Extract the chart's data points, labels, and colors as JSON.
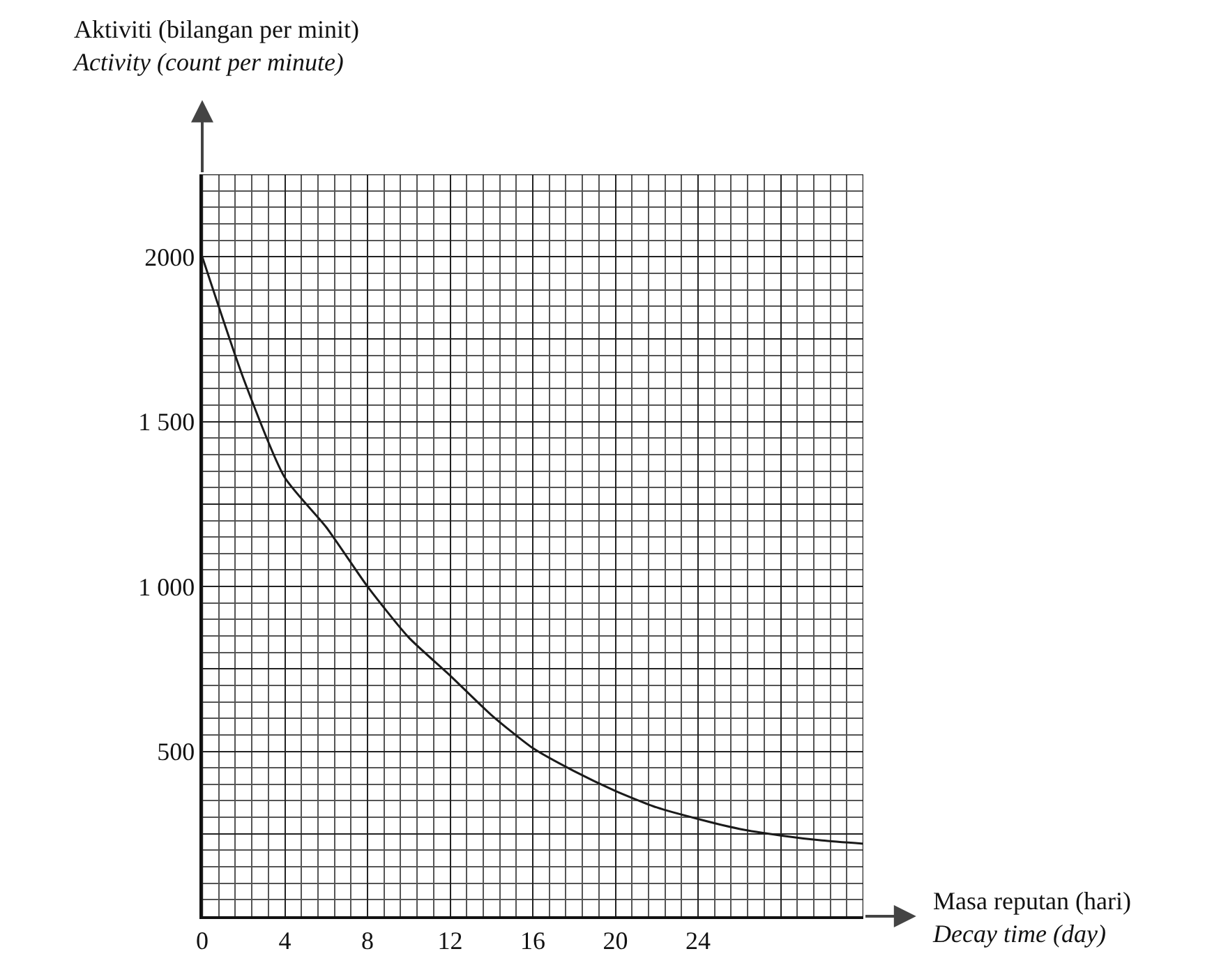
{
  "chart_data": {
    "type": "line",
    "xlabel": "Masa reputan (hari)\nDecay time (day)",
    "ylabel": "Aktiviti (bilangan per minit)\nActivity (count per minute)",
    "x": [
      0,
      2,
      4,
      6,
      8,
      10,
      12,
      14,
      16,
      18,
      20,
      22,
      24,
      26,
      28,
      30,
      32
    ],
    "series": [
      {
        "color": "#1a1a1a",
        "values": [
          2000,
          1630,
          1330,
          1180,
          1000,
          845,
          730,
          610,
          510,
          440,
          380,
          330,
          295,
          265,
          245,
          230,
          220
        ]
      }
    ],
    "xlim": [
      0,
      32
    ],
    "xticks": [
      0,
      4,
      8,
      12,
      16,
      20,
      24,
      {
        "value": 28,
        "label": null
      },
      {
        "value": 32,
        "label": null
      }
    ],
    "ylim": [
      0,
      2250
    ],
    "yticks": [
      {
        "value": 250,
        "label": null
      },
      500,
      {
        "value": 750,
        "label": null
      },
      {
        "value": 1000,
        "label": "1 000"
      },
      {
        "value": 1250,
        "label": null
      },
      {
        "value": 1500,
        "label": "1 500"
      },
      {
        "value": 1750,
        "label": null
      },
      2000,
      {
        "value": 2250,
        "label": null
      }
    ],
    "grid": true,
    "line_style": "solid",
    "marker": "none"
  }
}
